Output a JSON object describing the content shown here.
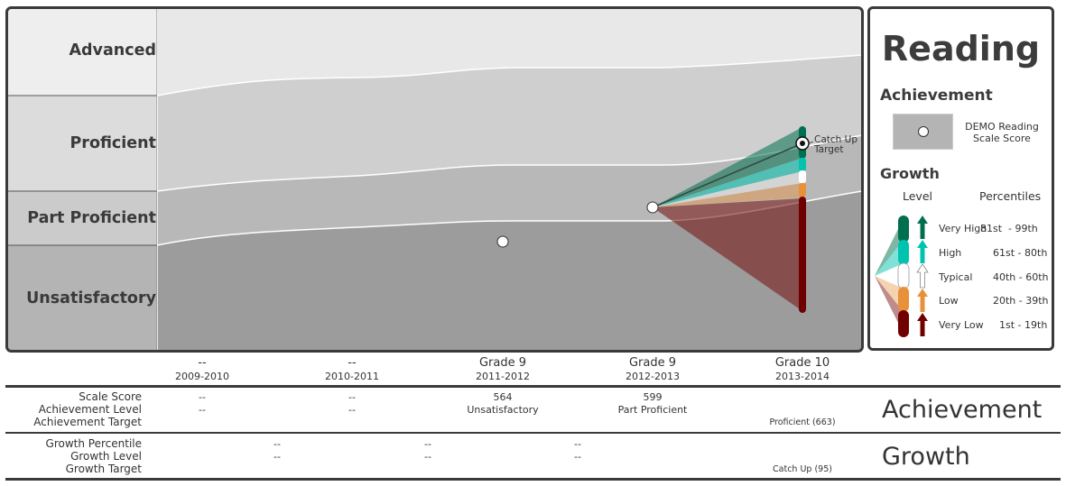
{
  "chart_data": {
    "type": "line",
    "title": "Reading",
    "bands": [
      "Advanced",
      "Proficient",
      "Part Proficient",
      "Unsatisfactory"
    ],
    "x_grade_labels": [
      "--",
      "--",
      "Grade 9",
      "Grade 9",
      "Grade 10"
    ],
    "x_year_labels": [
      "2009-2010",
      "2010-2011",
      "2011-2012",
      "2012-2013",
      "2013-2014"
    ],
    "points": [
      {
        "year": "2011-2012",
        "scale_score": 564,
        "level": "Unsatisfactory"
      },
      {
        "year": "2012-2013",
        "scale_score": 599,
        "level": "Part Proficient"
      }
    ],
    "target": {
      "year": "2013-2014",
      "label": "Catch Up Target",
      "value": 663,
      "growth_target": 95
    },
    "growth_colors": {
      "very_high": "#006f4f",
      "high": "#00c4b0",
      "typical": "#ffffff",
      "low": "#e8913a",
      "very_low": "#700000"
    },
    "band_colors": {
      "advanced": "#e8e8e8",
      "proficient": "#cfcfcf",
      "part_proficient": "#b8b8b8",
      "unsatisfactory": "#9c9c9c"
    }
  },
  "legend": {
    "title": "Reading",
    "achievement_heading": "Achievement",
    "achievement_item": "DEMO Reading Scale Score",
    "growth_heading": "Growth",
    "col_level": "Level",
    "col_percentiles": "Percentiles",
    "rows": [
      {
        "level": "Very High",
        "percentiles": "81st  - 99th"
      },
      {
        "level": "High",
        "percentiles": "61st - 80th"
      },
      {
        "level": "Typical",
        "percentiles": "40th - 60th"
      },
      {
        "level": "Low",
        "percentiles": "20th - 39th"
      },
      {
        "level": "Very Low",
        "percentiles": "1st - 19th"
      }
    ]
  },
  "catch_up_label_1": "Catch Up",
  "catch_up_label_2": "Target",
  "table": {
    "achievement": {
      "title": "Achievement",
      "row_labels": [
        "Scale Score",
        "Achievement Level",
        "Achievement Target"
      ],
      "scale_score": [
        "--",
        "--",
        "564",
        "599",
        ""
      ],
      "achievement_level": [
        "--",
        "--",
        "Unsatisfactory",
        "Part Proficient",
        ""
      ],
      "achievement_target": [
        "",
        "",
        "",
        "",
        "Proficient (663)"
      ]
    },
    "growth": {
      "title": "Growth",
      "row_labels": [
        "Growth Percentile",
        "Growth Level",
        "Growth Target"
      ],
      "growth_percentile": [
        "--",
        "--",
        "--"
      ],
      "growth_level": [
        "--",
        "--",
        "--"
      ],
      "growth_target": "Catch Up (95)"
    }
  }
}
